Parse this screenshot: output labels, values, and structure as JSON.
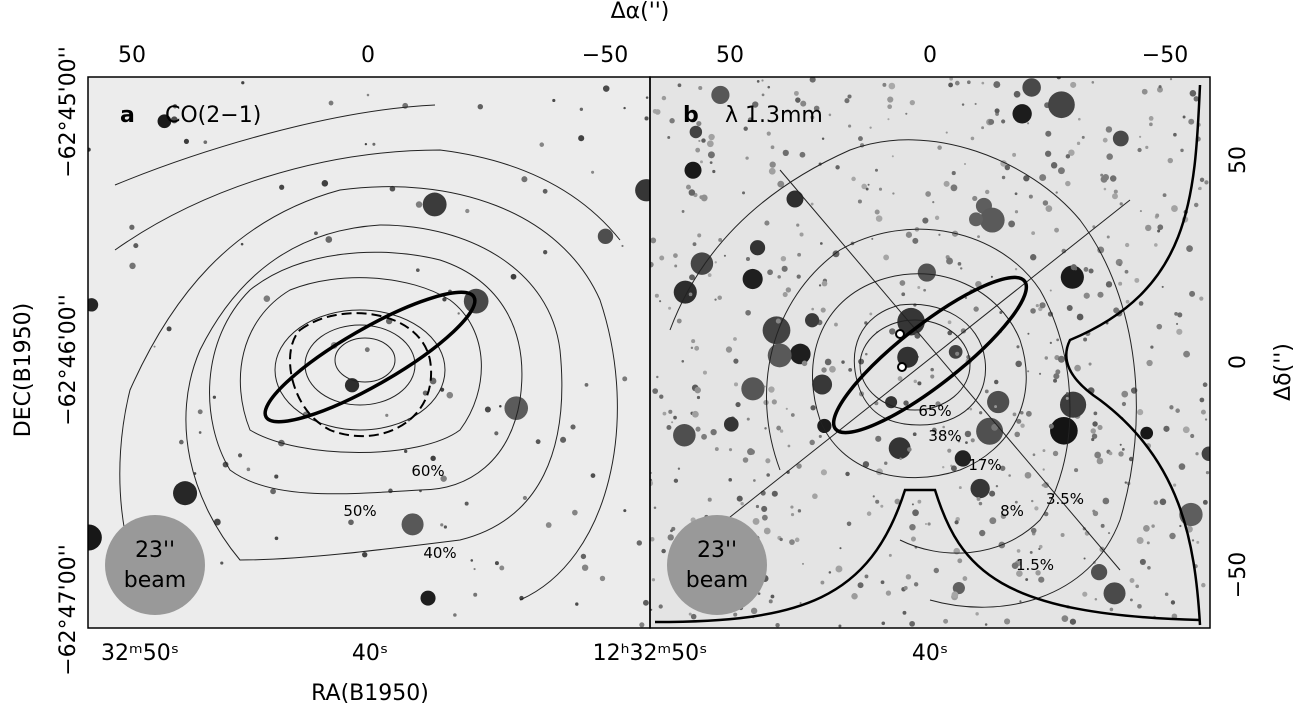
{
  "figure": {
    "top_axis_title": "Δα('')",
    "right_axis_title": "Δδ('')",
    "left_axis_title": "DEC(B1950)",
    "bottom_axis_title": "RA(B1950)",
    "top_ticks_a": [
      "50",
      "0",
      "−50"
    ],
    "top_ticks_b": [
      "50",
      "0",
      "−50"
    ],
    "right_ticks": [
      "50",
      "0",
      "−50"
    ],
    "left_ticks": [
      "−62°45'00''",
      "−62°46'00''",
      "−62°47'00''"
    ],
    "bottom_ticks": [
      "32ᵐ50ˢ",
      "40ˢ",
      "12ʰ32ᵐ50ˢ",
      "40ˢ"
    ],
    "panels": [
      {
        "letter": "a",
        "label": "CO(2−1)",
        "beam_size": "23''",
        "beam_text": "beam",
        "contour_labels": [
          "60%",
          "50%",
          "40%"
        ]
      },
      {
        "letter": "b",
        "label": "λ 1.3mm",
        "beam_size": "23''",
        "beam_text": "beam",
        "contour_labels": [
          "65%",
          "38%",
          "17%",
          "8%",
          "3.5%",
          "1.5%"
        ]
      }
    ]
  }
}
